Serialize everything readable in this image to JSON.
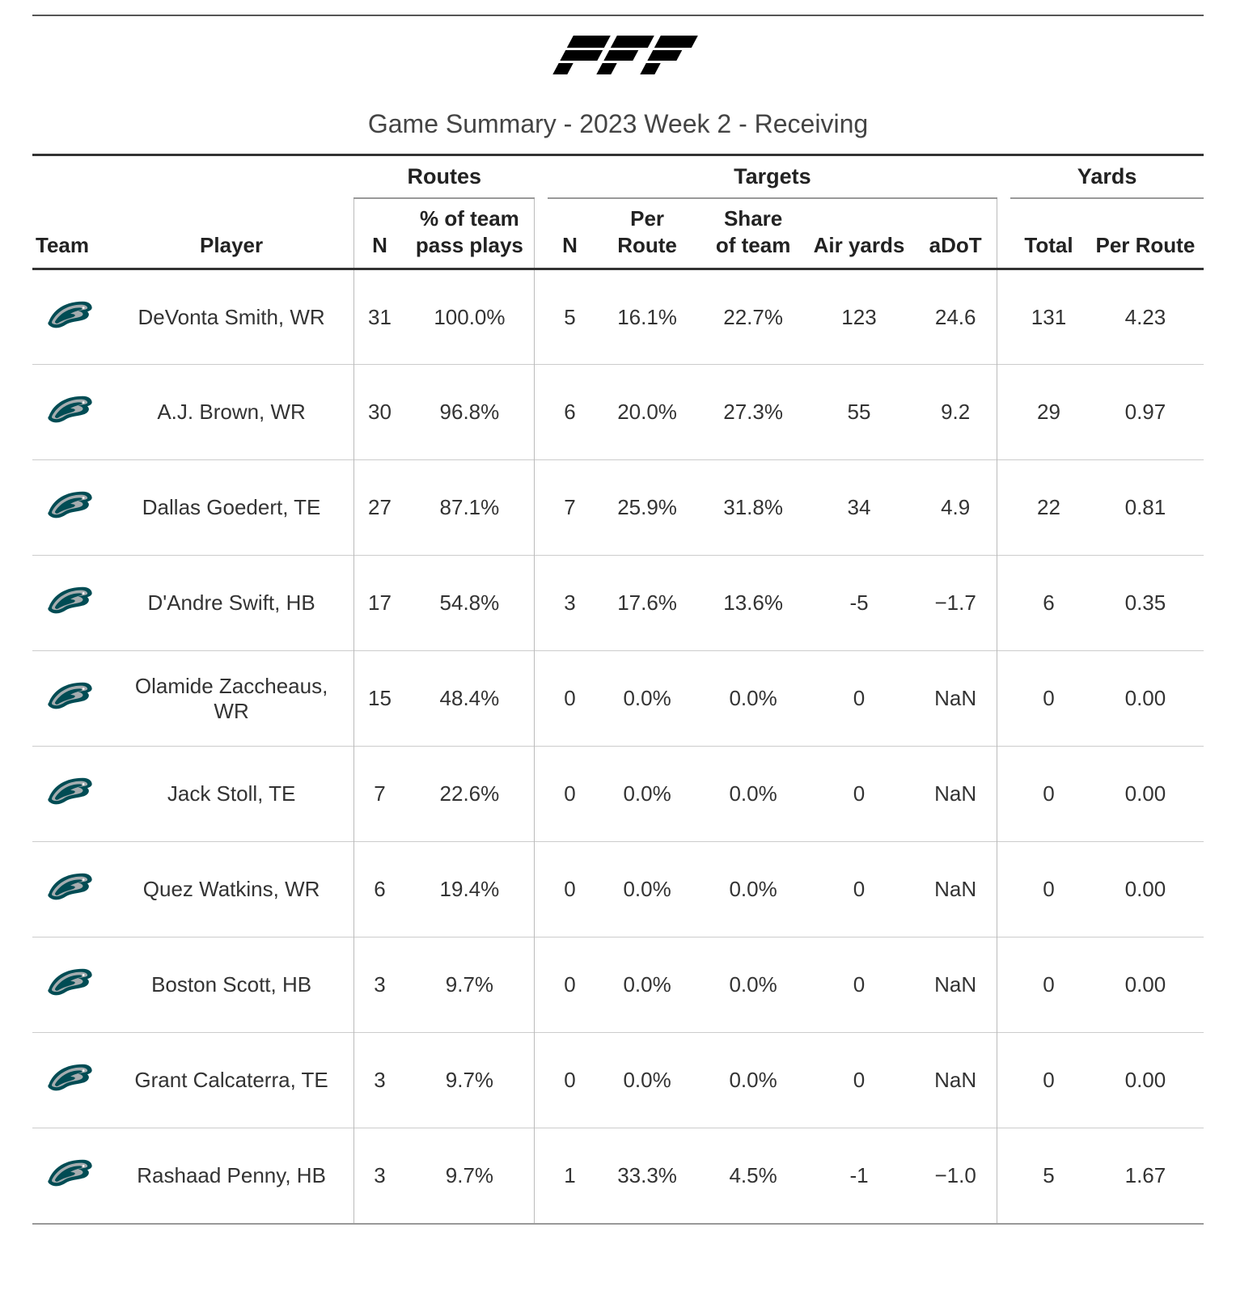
{
  "brand": {
    "name": "PFF"
  },
  "title": "Game Summary - 2023 Week 2 - Receiving",
  "colors": {
    "text": "#333333",
    "rule_dark": "#333333",
    "rule_mid": "#999999",
    "rule_light": "#cccccc",
    "background": "#ffffff",
    "logo": "#000000",
    "team_primary": "#004c54",
    "team_secondary": "#a5acaf"
  },
  "table": {
    "groups": {
      "routes": "Routes",
      "targets": "Targets",
      "yards": "Yards"
    },
    "columns": {
      "team": "Team",
      "player": "Player",
      "routes_n": "N",
      "routes_pct_l1": "% of team",
      "routes_pct_l2": "pass plays",
      "targets_n": "N",
      "targets_per_route": "Per Route",
      "targets_share_l1": "Share",
      "targets_share_l2": "of team",
      "targets_air": "Air yards",
      "targets_adot": "aDoT",
      "yards_total": "Total",
      "yards_per_route": "Per Route"
    },
    "rows": [
      {
        "team": "PHI",
        "player": "DeVonta Smith, WR",
        "routes_n": "31",
        "routes_pct": "100.0%",
        "t_n": "5",
        "t_pr": "16.1%",
        "t_share": "22.7%",
        "t_air": "123",
        "t_adot": "24.6",
        "y_total": "131",
        "y_pr": "4.23"
      },
      {
        "team": "PHI",
        "player": "A.J. Brown, WR",
        "routes_n": "30",
        "routes_pct": "96.8%",
        "t_n": "6",
        "t_pr": "20.0%",
        "t_share": "27.3%",
        "t_air": "55",
        "t_adot": "9.2",
        "y_total": "29",
        "y_pr": "0.97"
      },
      {
        "team": "PHI",
        "player": "Dallas Goedert, TE",
        "routes_n": "27",
        "routes_pct": "87.1%",
        "t_n": "7",
        "t_pr": "25.9%",
        "t_share": "31.8%",
        "t_air": "34",
        "t_adot": "4.9",
        "y_total": "22",
        "y_pr": "0.81"
      },
      {
        "team": "PHI",
        "player": "D'Andre Swift, HB",
        "routes_n": "17",
        "routes_pct": "54.8%",
        "t_n": "3",
        "t_pr": "17.6%",
        "t_share": "13.6%",
        "t_air": "-5",
        "t_adot": "−1.7",
        "y_total": "6",
        "y_pr": "0.35"
      },
      {
        "team": "PHI",
        "player": "Olamide Zaccheaus, WR",
        "routes_n": "15",
        "routes_pct": "48.4%",
        "t_n": "0",
        "t_pr": "0.0%",
        "t_share": "0.0%",
        "t_air": "0",
        "t_adot": "NaN",
        "y_total": "0",
        "y_pr": "0.00"
      },
      {
        "team": "PHI",
        "player": "Jack Stoll, TE",
        "routes_n": "7",
        "routes_pct": "22.6%",
        "t_n": "0",
        "t_pr": "0.0%",
        "t_share": "0.0%",
        "t_air": "0",
        "t_adot": "NaN",
        "y_total": "0",
        "y_pr": "0.00"
      },
      {
        "team": "PHI",
        "player": "Quez Watkins, WR",
        "routes_n": "6",
        "routes_pct": "19.4%",
        "t_n": "0",
        "t_pr": "0.0%",
        "t_share": "0.0%",
        "t_air": "0",
        "t_adot": "NaN",
        "y_total": "0",
        "y_pr": "0.00"
      },
      {
        "team": "PHI",
        "player": "Boston Scott, HB",
        "routes_n": "3",
        "routes_pct": "9.7%",
        "t_n": "0",
        "t_pr": "0.0%",
        "t_share": "0.0%",
        "t_air": "0",
        "t_adot": "NaN",
        "y_total": "0",
        "y_pr": "0.00"
      },
      {
        "team": "PHI",
        "player": "Grant Calcaterra, TE",
        "routes_n": "3",
        "routes_pct": "9.7%",
        "t_n": "0",
        "t_pr": "0.0%",
        "t_share": "0.0%",
        "t_air": "0",
        "t_adot": "NaN",
        "y_total": "0",
        "y_pr": "0.00"
      },
      {
        "team": "PHI",
        "player": "Rashaad Penny, HB",
        "routes_n": "3",
        "routes_pct": "9.7%",
        "t_n": "1",
        "t_pr": "33.3%",
        "t_share": "4.5%",
        "t_air": "-1",
        "t_adot": "−1.0",
        "y_total": "5",
        "y_pr": "1.67"
      }
    ]
  }
}
